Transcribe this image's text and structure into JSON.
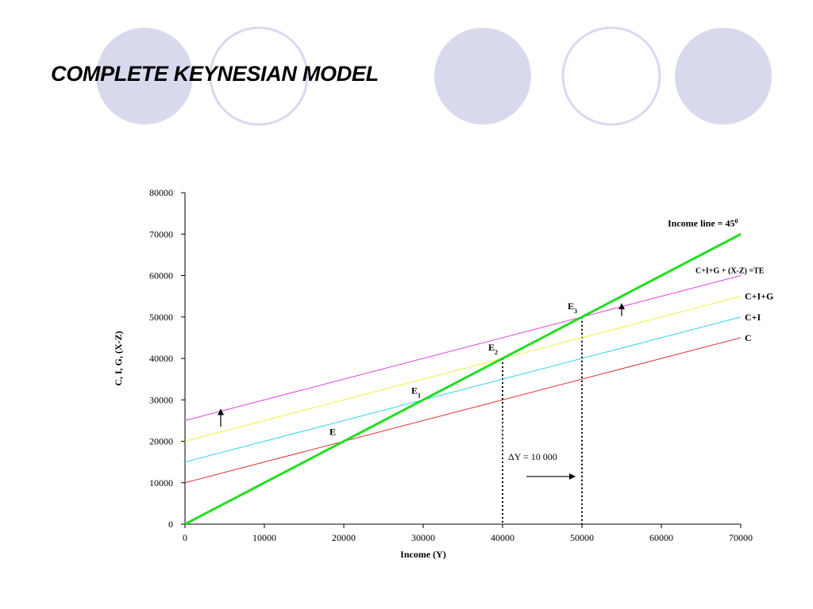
{
  "slide": {
    "title": "COMPLETE KEYNESIAN MODEL",
    "circle_fill": "#d9d9ee",
    "circle_stroke": "#d9d9ee"
  },
  "chart_data": {
    "type": "line",
    "xlabel": "Income (Y)",
    "ylabel": "C, I, G, (X-Z)",
    "xlim": [
      0,
      70000
    ],
    "ylim": [
      0,
      80000
    ],
    "xticks": [
      0,
      10000,
      20000,
      30000,
      40000,
      50000,
      60000,
      70000
    ],
    "yticks": [
      0,
      10000,
      20000,
      30000,
      40000,
      50000,
      60000,
      70000,
      80000
    ],
    "grid": false,
    "legend": "none",
    "series": [
      {
        "name": "C",
        "color": "#e03030",
        "x": [
          0,
          70000
        ],
        "y": [
          10000,
          45000
        ]
      },
      {
        "name": "C+I",
        "color": "#30d0f0",
        "x": [
          0,
          70000
        ],
        "y": [
          15000,
          50000
        ]
      },
      {
        "name": "C+I+G",
        "color": "#f0f040",
        "x": [
          0,
          70000
        ],
        "y": [
          20000,
          55000
        ]
      },
      {
        "name": "C+I+G + (X-Z) =TE",
        "color": "#e040e0",
        "x": [
          0,
          70000
        ],
        "y": [
          25000,
          60000
        ]
      },
      {
        "name": "Income line = 45",
        "name_sup": "0",
        "color": "#22dd22",
        "x": [
          0,
          70000
        ],
        "y": [
          0,
          70000
        ]
      }
    ],
    "equilibria": [
      {
        "label": "E",
        "sub": "",
        "x": 20000,
        "y": 20000
      },
      {
        "label": "E",
        "sub": "1",
        "x": 30000,
        "y": 30000
      },
      {
        "label": "E",
        "sub": "2",
        "x": 40000,
        "y": 40000
      },
      {
        "label": "E",
        "sub": "3",
        "x": 50000,
        "y": 50000
      }
    ],
    "dotted_verticals": [
      40000,
      50000
    ],
    "annotation": {
      "text": "ΔY = 10 000",
      "arrow_from_x": 43000,
      "arrow_to_x": 49000,
      "arrow_y": 11500
    },
    "shift_arrows": [
      {
        "x": 4500,
        "y_from": 23500,
        "y_to": 27500
      },
      {
        "x": 55000,
        "y_from": 50200,
        "y_to": 53000
      }
    ]
  }
}
